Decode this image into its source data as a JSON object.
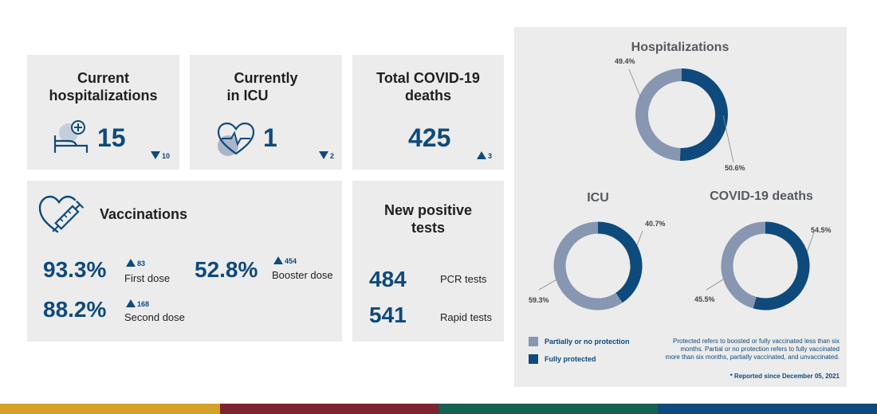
{
  "cards": {
    "hospitalizations": {
      "title_line1": "Current",
      "title_line2": "hospitalizations",
      "value": "15",
      "change": "10",
      "icon": "hospital-bed-icon"
    },
    "icu": {
      "title_line1": "Currently",
      "title_line2": "in ICU",
      "value": "1",
      "change": "2",
      "icon": "heart-pulse-icon"
    },
    "deaths": {
      "title_line1": "Total COVID-19",
      "title_line2": "deaths",
      "value": "425",
      "change": "3"
    },
    "vaccinations": {
      "title": "Vaccinations",
      "icon": "heart-syringe-icon",
      "first": {
        "value": "93.3%",
        "change": "83",
        "label": "First dose"
      },
      "second": {
        "value": "88.2%",
        "change": "168",
        "label": "Second dose"
      },
      "booster": {
        "value": "52.8%",
        "change": "454",
        "label": "Booster dose"
      }
    },
    "tests": {
      "title_line1": "New positive",
      "title_line2": "tests",
      "pcr": {
        "value": "484",
        "label": "PCR tests"
      },
      "rapid": {
        "value": "541",
        "label": "Rapid tests"
      }
    }
  },
  "chart_data": [
    {
      "type": "pie",
      "title": "Hospitalizations",
      "series": [
        {
          "name": "Partially or no protection",
          "value": 49.4,
          "label": "49.4%"
        },
        {
          "name": "Fully protected",
          "value": 50.6,
          "label": "50.6%"
        }
      ]
    },
    {
      "type": "pie",
      "title": "ICU",
      "series": [
        {
          "name": "Partially or no protection",
          "value": 59.3,
          "label": "59.3%"
        },
        {
          "name": "Fully protected",
          "value": 40.7,
          "label": "40.7%"
        }
      ]
    },
    {
      "type": "pie",
      "title": "COVID-19 deaths",
      "series": [
        {
          "name": "Partially or no protection",
          "value": 45.5,
          "label": "45.5%"
        },
        {
          "name": "Fully protected",
          "value": 54.5,
          "label": "54.5%"
        }
      ]
    }
  ],
  "legend": {
    "partial": "Partially or no protection",
    "full": "Fully protected"
  },
  "note": {
    "line1": "Protected refers to boosted or fully vaccinated less than six",
    "line2": "months. Partial or no protection refers to fully vaccinated",
    "line3": "more than six months, partially vaccinated, and unvaccinated."
  },
  "footnote": "* Reported since December 05, 2021",
  "colors": {
    "partial": "#8797b1",
    "full": "#0e4a7c",
    "accent": "#0e4a7c",
    "bar_gold": "#d4a22a",
    "bar_maroon": "#7c2530",
    "bar_green": "#15604e",
    "bar_blue": "#0e4a7c"
  }
}
